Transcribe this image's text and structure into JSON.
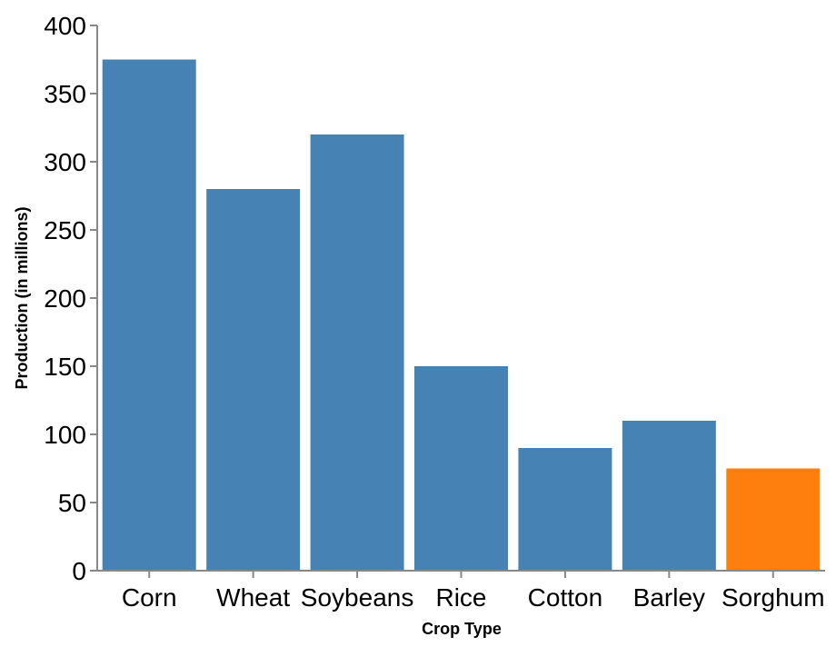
{
  "chart_data": {
    "type": "bar",
    "categories": [
      "Corn",
      "Wheat",
      "Soybeans",
      "Rice",
      "Cotton",
      "Barley",
      "Sorghum"
    ],
    "values": [
      375,
      280,
      320,
      150,
      90,
      110,
      75
    ],
    "colors": [
      "#4682b4",
      "#4682b4",
      "#4682b4",
      "#4682b4",
      "#4682b4",
      "#4682b4",
      "#ff7f0e"
    ],
    "xlabel": "Crop Type",
    "ylabel": "Production (in millions)",
    "ylim": [
      0,
      400
    ],
    "yticks": [
      0,
      50,
      100,
      150,
      200,
      250,
      300,
      350,
      400
    ],
    "grid": false,
    "legend": "none"
  }
}
